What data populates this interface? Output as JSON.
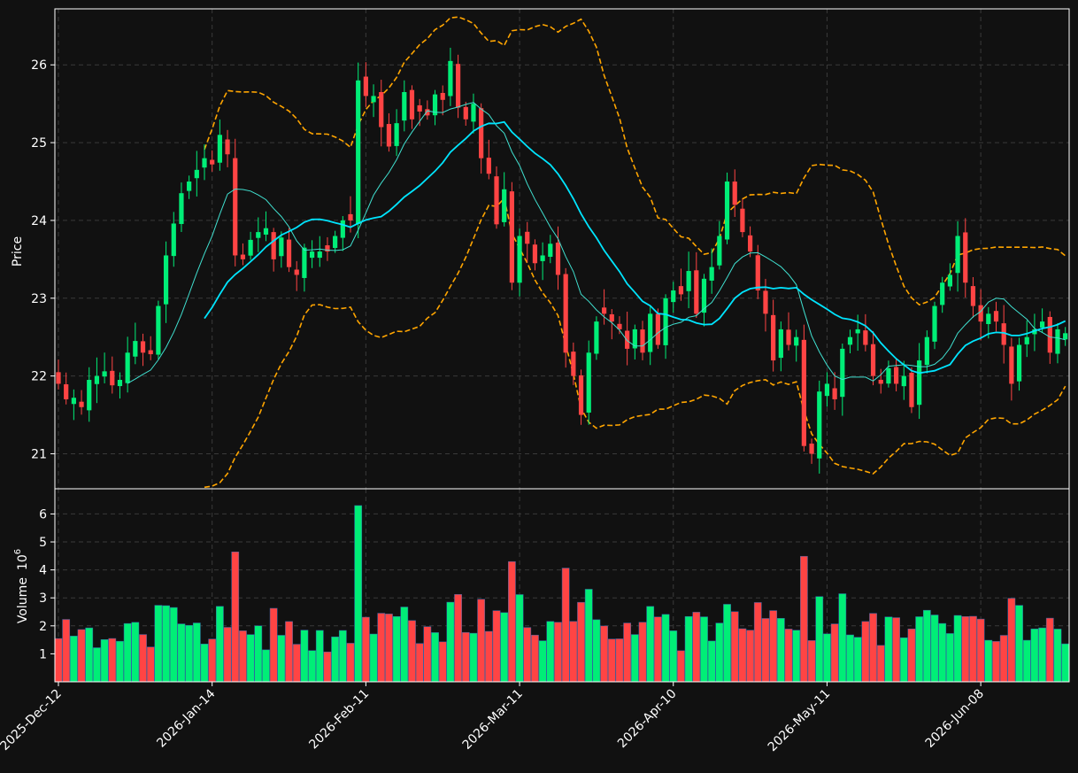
{
  "chart_data": {
    "type": "candlestick",
    "colors": {
      "background": "#111111",
      "up": "#00ee77",
      "down": "#ff4444",
      "ma_long": "#00e5ff",
      "ma_short": "#40e0d0",
      "bands": "#ffa500",
      "axis": "#ffffff",
      "grid": "#3a3a3a"
    },
    "price_panel": {
      "ylabel": "Price",
      "ylim": [
        20.55,
        26.72
      ],
      "yticks": [
        21,
        22,
        23,
        24,
        25,
        26
      ]
    },
    "volume_panel": {
      "ylabel": "Volume",
      "ylabel_exponent": "6",
      "ylim": [
        0,
        6.9
      ],
      "yticks": [
        1,
        2,
        3,
        4,
        5,
        6
      ]
    },
    "x_tick_labels": [
      {
        "label": "2025-Dec-12",
        "index": 0
      },
      {
        "label": "2026-Jan-14",
        "index": 20
      },
      {
        "label": "2026-Feb-11",
        "index": 40
      },
      {
        "label": "2026-Mar-11",
        "index": 60
      },
      {
        "label": "2026-Apr-10",
        "index": 80
      },
      {
        "label": "2026-May-11",
        "index": 100
      },
      {
        "label": "2026-Jun-08",
        "index": 120
      }
    ],
    "close": [
      21.9,
      21.7,
      21.72,
      21.6,
      21.95,
      22.0,
      22.06,
      21.88,
      21.95,
      22.3,
      22.45,
      22.3,
      22.28,
      22.9,
      23.55,
      23.96,
      24.35,
      24.5,
      24.65,
      24.8,
      24.72,
      25.1,
      24.85,
      23.55,
      23.5,
      23.75,
      23.85,
      23.9,
      23.5,
      23.78,
      23.4,
      23.3,
      23.65,
      23.6,
      23.6,
      23.6,
      23.8,
      24.0,
      24.0,
      25.8,
      25.6,
      25.6,
      25.2,
      24.95,
      25.25,
      25.65,
      25.3,
      25.4,
      25.35,
      25.62,
      25.55,
      26.05,
      25.45,
      25.3,
      25.5,
      24.8,
      24.6,
      23.95,
      24.4,
      23.2,
      23.8,
      23.7,
      23.45,
      23.55,
      23.7,
      23.3,
      22.3,
      22.0,
      21.5,
      22.3,
      22.7,
      22.8,
      22.7,
      22.6,
      22.35,
      22.6,
      22.3,
      22.8,
      22.4,
      23.0,
      23.1,
      23.05,
      23.35,
      22.8,
      23.25,
      23.4,
      23.8,
      24.5,
      24.2,
      23.85,
      23.6,
      23.1,
      22.8,
      22.2,
      22.6,
      22.4,
      22.5,
      21.1,
      21.0,
      21.8,
      21.9,
      21.7,
      22.35,
      22.5,
      22.6,
      22.4,
      22.0,
      21.9,
      22.1,
      21.9,
      22.0,
      21.6,
      22.2,
      22.5,
      22.9,
      23.2,
      23.3,
      23.8,
      23.2,
      22.9,
      22.7,
      22.8,
      22.7,
      22.4,
      21.9,
      22.4,
      22.5,
      22.6,
      22.7,
      22.3,
      22.6,
      22.55
    ]
  }
}
